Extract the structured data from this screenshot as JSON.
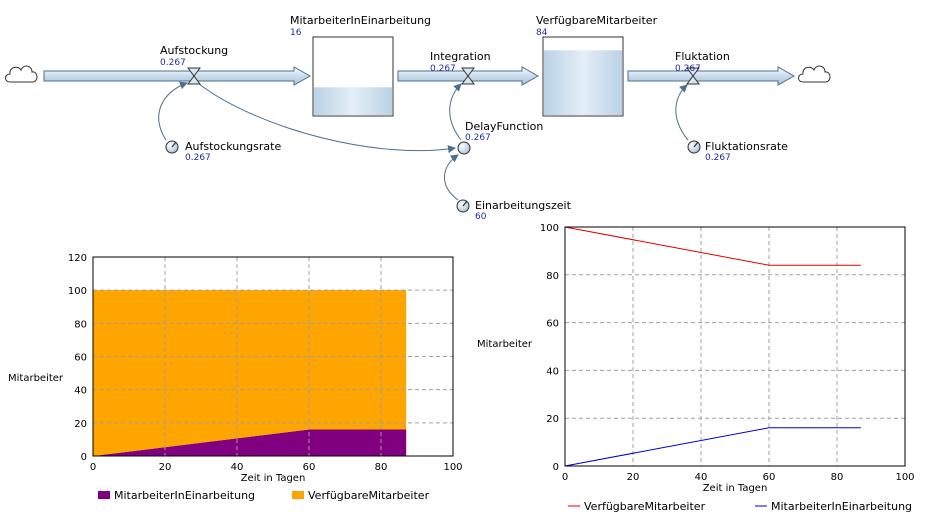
{
  "model": {
    "stocks": [
      {
        "name": "MitarbeiterInEinarbeitung",
        "value": "16",
        "level": 0.36
      },
      {
        "name": "VerfügbareMitarbeiter",
        "value": "84",
        "level": 0.84
      }
    ],
    "flows": [
      {
        "name": "Aufstockung",
        "value": "0.267"
      },
      {
        "name": "Integration",
        "value": "0.267"
      },
      {
        "name": "Fluktation",
        "value": "0.267"
      }
    ],
    "converters": [
      {
        "name": "Aufstockungsrate",
        "value": "0.267"
      },
      {
        "name": "DelayFunction",
        "value": "0.267"
      },
      {
        "name": "Einarbeitungszeit",
        "value": "60"
      },
      {
        "name": "Fluktationsrate",
        "value": "0.267"
      }
    ]
  },
  "chart_data": [
    {
      "type": "area",
      "stacked": true,
      "xlabel": "Zeit in Tagen",
      "ylabel": "Mitarbeiter",
      "xlim": [
        0,
        100
      ],
      "ylim": [
        0,
        120
      ],
      "xticks": [
        "0",
        "20",
        "40",
        "60",
        "80",
        "100"
      ],
      "yticks": [
        "0",
        "20",
        "40",
        "60",
        "80",
        "100",
        "120"
      ],
      "grid": true,
      "legend": "bottom",
      "x": [
        0,
        60,
        87
      ],
      "series": [
        {
          "name": "MitarbeiterInEinarbeitung",
          "color": "#800080",
          "values": [
            0,
            16,
            16
          ]
        },
        {
          "name": "VerfügbareMitarbeiter",
          "color": "#ffa500",
          "values": [
            100,
            84,
            84
          ]
        }
      ]
    },
    {
      "type": "line",
      "xlabel": "Zeit in Tagen",
      "ylabel": "Mitarbeiter",
      "xlim": [
        0,
        100
      ],
      "ylim": [
        0,
        100
      ],
      "xticks": [
        "0",
        "20",
        "40",
        "60",
        "80",
        "100"
      ],
      "yticks": [
        "0",
        "20",
        "40",
        "60",
        "80",
        "100"
      ],
      "grid": true,
      "legend": "bottom",
      "x": [
        0,
        60,
        87
      ],
      "series": [
        {
          "name": "VerfügbareMitarbeiter",
          "color": "#e00000",
          "values": [
            100,
            84,
            84
          ]
        },
        {
          "name": "MitarbeiterInEinarbeitung",
          "color": "#0000c8",
          "values": [
            0,
            16,
            16
          ]
        }
      ]
    }
  ]
}
